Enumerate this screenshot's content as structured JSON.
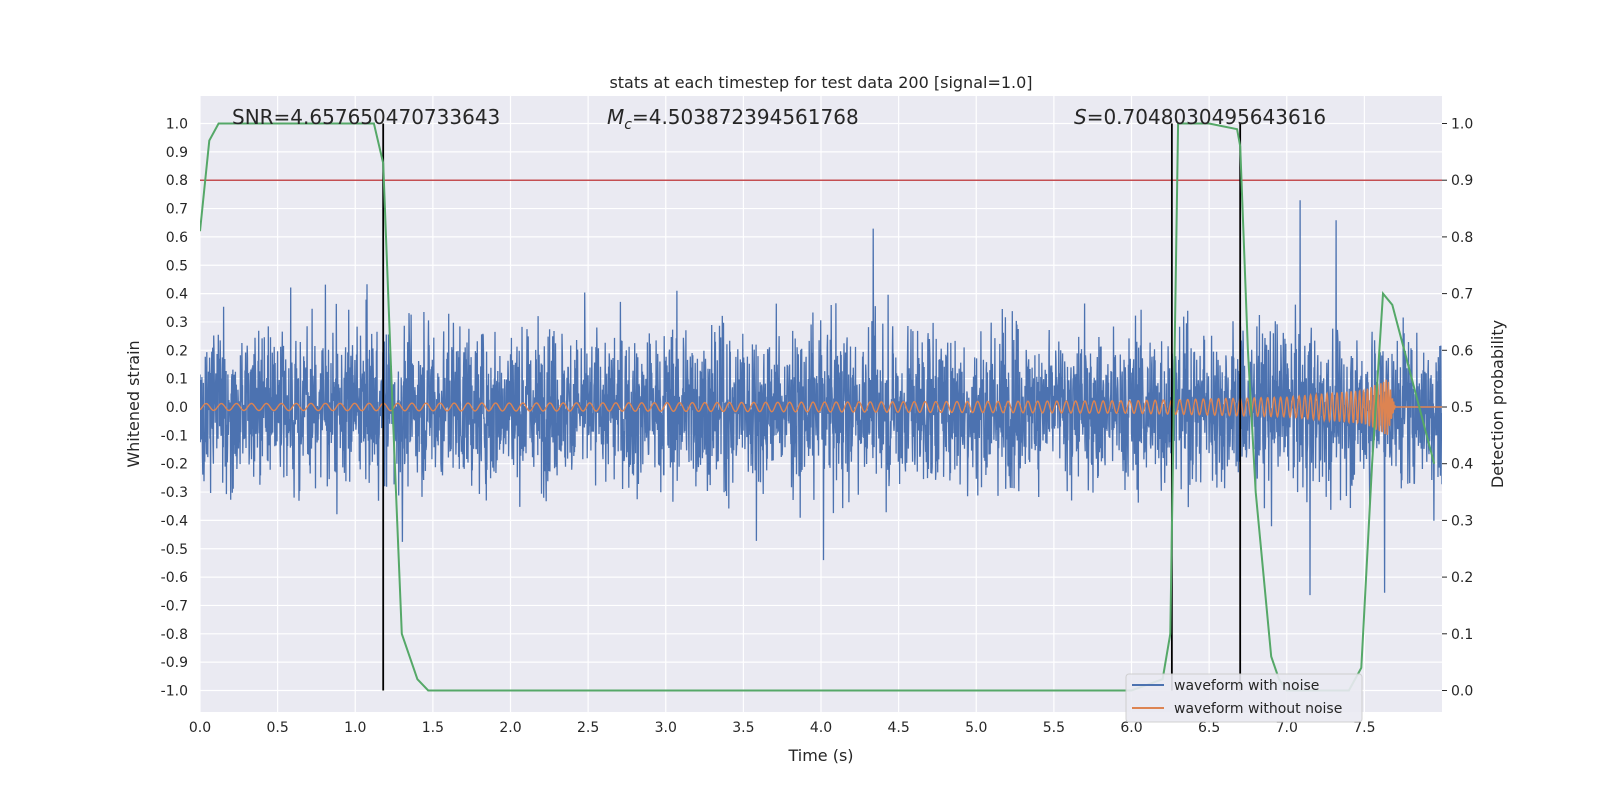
{
  "chart_data": {
    "type": "line",
    "title": "stats at each timestep for test data 200 [signal=1.0]",
    "xlabel": "Time (s)",
    "ylabel_left": "Whitened strain",
    "ylabel_right": "Detection probability",
    "xlim": [
      0.0,
      8.0
    ],
    "ylim_left": [
      -1.07,
      1.1
    ],
    "ylim_right": [
      -0.05,
      1.045
    ],
    "x_ticks": [
      "0.0",
      "0.5",
      "1.0",
      "1.5",
      "2.0",
      "2.5",
      "3.0",
      "3.5",
      "4.0",
      "4.5",
      "5.0",
      "5.5",
      "6.0",
      "6.5",
      "7.0",
      "7.5"
    ],
    "y_left_ticks": [
      "1.0",
      "0.9",
      "0.8",
      "0.7",
      "0.6",
      "0.5",
      "0.4",
      "0.3",
      "0.2",
      "0.1",
      "0.0",
      "-0.1",
      "-0.2",
      "-0.3",
      "-0.4",
      "-0.5",
      "-0.6",
      "-0.7",
      "-0.8",
      "-0.9",
      "-1.0"
    ],
    "y_right_ticks": [
      "1.0",
      "0.9",
      "0.8",
      "0.7",
      "0.6",
      "0.5",
      "0.4",
      "0.3",
      "0.2",
      "0.1",
      "0.0"
    ],
    "grid": true,
    "annotations": {
      "snr": "SNR=4.657650470733643",
      "mc_symbol": "M",
      "mc_sub": "c",
      "mc_value": "=4.503872394561768",
      "s_symbol": "S",
      "s_value": "=0.7048030495643616"
    },
    "threshold": {
      "axis": "right",
      "y": 0.9,
      "color": "#c44e52"
    },
    "detection_boundaries": [
      1.18,
      6.26,
      6.7
    ],
    "series": [
      {
        "name": "waveform with noise",
        "axis": "left",
        "color": "#4c72b0",
        "description_typical_amplitude": 0.45,
        "peak_amplitude": 0.9
      },
      {
        "name": "waveform without noise",
        "axis": "left",
        "color": "#dd8452",
        "envelope": {
          "t": [
            0.0,
            3.0,
            6.0,
            7.0,
            7.5,
            7.65,
            7.7
          ],
          "amp": [
            0.012,
            0.015,
            0.022,
            0.035,
            0.06,
            0.1,
            0.0
          ]
        }
      },
      {
        "name": "",
        "axis": "right",
        "color": "#55a868",
        "t": [
          0.0,
          0.06,
          0.12,
          0.5,
          1.0,
          1.12,
          1.18,
          1.24,
          1.3,
          1.4,
          1.47,
          2.0,
          3.0,
          4.0,
          5.0,
          6.0,
          6.2,
          6.25,
          6.3,
          6.35,
          6.5,
          6.68,
          6.7,
          6.75,
          6.8,
          6.9,
          6.95,
          7.0,
          7.4,
          7.48,
          7.55,
          7.62,
          7.68,
          7.95
        ],
        "p": [
          0.81,
          0.97,
          1.0,
          1.0,
          1.0,
          1.0,
          0.93,
          0.5,
          0.1,
          0.02,
          0.0,
          0.0,
          0.0,
          0.0,
          0.0,
          0.0,
          0.02,
          0.1,
          1.0,
          1.0,
          1.0,
          0.99,
          0.96,
          0.6,
          0.35,
          0.06,
          0.02,
          0.0,
          0.0,
          0.04,
          0.4,
          0.7,
          0.68,
          0.4
        ]
      }
    ]
  }
}
